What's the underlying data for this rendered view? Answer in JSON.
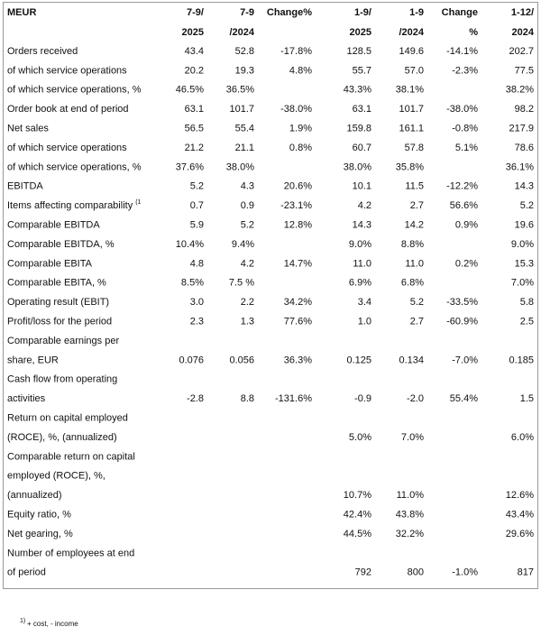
{
  "table": {
    "header": [
      [
        "MEUR",
        null
      ],
      [
        "7-9/",
        "2025"
      ],
      [
        "7-9",
        "/2024"
      ],
      [
        "Change%",
        null
      ],
      [
        "1-9/",
        "2025"
      ],
      [
        "1-9",
        "/2024"
      ],
      [
        "Change",
        "%"
      ],
      [
        "1-12/",
        "2024"
      ]
    ],
    "rows": [
      {
        "label": [
          "Orders received"
        ],
        "cells": [
          "43.4",
          "52.8",
          "-17.8%",
          "128.5",
          "149.6",
          "-14.1%",
          "202.7"
        ]
      },
      {
        "label": [
          "of which service operations"
        ],
        "cells": [
          "20.2",
          "19.3",
          "4.8%",
          "55.7",
          "57.0",
          "-2.3%",
          "77.5"
        ]
      },
      {
        "label": [
          "of which service operations, %"
        ],
        "cells": [
          "46.5%",
          "36.5%",
          null,
          "43.3%",
          "38.1%",
          null,
          "38.2%"
        ]
      },
      {
        "label": [
          "Order book at end of period"
        ],
        "cells": [
          "63.1",
          "101.7",
          "-38.0%",
          "63.1",
          "101.7",
          "-38.0%",
          "98.2"
        ]
      },
      {
        "label": [
          "Net sales"
        ],
        "cells": [
          "56.5",
          "55.4",
          "1.9%",
          "159.8",
          "161.1",
          "-0.8%",
          "217.9"
        ]
      },
      {
        "label": [
          "of which service operations"
        ],
        "cells": [
          "21.2",
          "21.1",
          "0.8%",
          "60.7",
          "57.8",
          "5.1%",
          "78.6"
        ]
      },
      {
        "label": [
          "of which service operations, %"
        ],
        "cells": [
          "37.6%",
          "38.0%",
          null,
          "38.0%",
          "35.8%",
          null,
          "36.1%"
        ]
      },
      {
        "label": [
          "EBITDA"
        ],
        "cells": [
          "5.2",
          "4.3",
          "20.6%",
          "10.1",
          "11.5",
          "-12.2%",
          "14.3"
        ]
      },
      {
        "label": [
          "Items affecting comparability"
        ],
        "note": "(1",
        "cells": [
          "0.7",
          "0.9",
          "-23.1%",
          "4.2",
          "2.7",
          "56.6%",
          "5.2"
        ]
      },
      {
        "label": [
          "Comparable EBITDA"
        ],
        "cells": [
          "5.9",
          "5.2",
          "12.8%",
          "14.3",
          "14.2",
          "0.9%",
          "19.6"
        ]
      },
      {
        "label": [
          "Comparable EBITDA, %"
        ],
        "cells": [
          "10.4%",
          "9.4%",
          null,
          "9.0%",
          "8.8%",
          null,
          "9.0%"
        ]
      },
      {
        "label": [
          "Comparable EBITA"
        ],
        "cells": [
          "4.8",
          "4.2",
          "14.7%",
          "11.0",
          "11.0",
          "0.2%",
          "15.3"
        ]
      },
      {
        "label": [
          "Comparable EBITA, %"
        ],
        "cells": [
          "8.5%",
          "7.5 %",
          null,
          "6.9%",
          "6.8%",
          null,
          "7.0%"
        ]
      },
      {
        "label": [
          "Operating result (EBIT)"
        ],
        "cells": [
          "3.0",
          "2.2",
          "34.2%",
          "3.4",
          "5.2",
          "-33.5%",
          "5.8"
        ]
      },
      {
        "label": [
          "Profit/loss for the period"
        ],
        "cells": [
          "2.3",
          "1.3",
          "77.6%",
          "1.0",
          "2.7",
          "-60.9%",
          "2.5"
        ]
      },
      {
        "label": [
          "Comparable earnings per",
          "share, EUR"
        ],
        "cells": [
          "0.076",
          "0.056",
          "36.3%",
          "0.125",
          "0.134",
          "-7.0%",
          "0.185"
        ]
      },
      {
        "label": [
          "Cash flow from operating",
          "activities"
        ],
        "cells": [
          "-2.8",
          "8.8",
          "-131.6%",
          "-0.9",
          "-2.0",
          "55.4%",
          "1.5"
        ]
      },
      {
        "label": [
          "Return on capital employed",
          "(ROCE), %, (annualized)"
        ],
        "cells": [
          null,
          null,
          null,
          "5.0%",
          "7.0%",
          null,
          "6.0%"
        ]
      },
      {
        "label": [
          "Comparable return on capital",
          "employed (ROCE), %,",
          "(annualized)"
        ],
        "cells": [
          null,
          null,
          null,
          "10.7%",
          "11.0%",
          null,
          "12.6%"
        ]
      },
      {
        "label": [
          "Equity ratio, %"
        ],
        "cells": [
          null,
          null,
          null,
          "42.4%",
          "43.8%",
          null,
          "43.4%"
        ]
      },
      {
        "label": [
          "Net gearing, %"
        ],
        "cells": [
          null,
          null,
          null,
          "44.5%",
          "32.2%",
          null,
          "29.6%"
        ]
      },
      {
        "label": [
          "Number of employees at end",
          "of period"
        ],
        "cells": [
          null,
          null,
          null,
          "792",
          "800",
          "-1.0%",
          "817"
        ]
      }
    ]
  },
  "footnote": {
    "mark": "1)",
    "text": "+ cost, - income"
  }
}
